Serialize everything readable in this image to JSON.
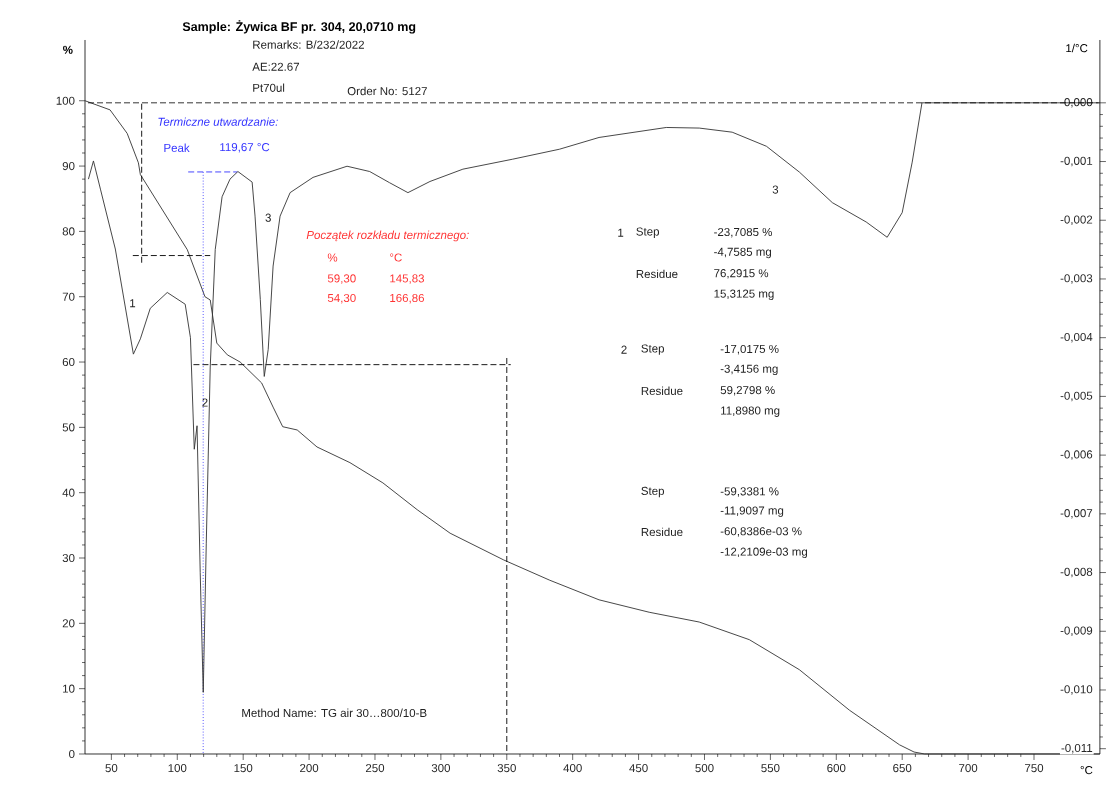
{
  "chart_data": {
    "type": "line",
    "title": "Sample: Żywica BF pr. 304, 20,0710 mg",
    "xlabel": "°C",
    "ylabel": "%",
    "y2label": "1/°C",
    "xlim": [
      30,
      800
    ],
    "xticks": [
      50,
      100,
      150,
      200,
      250,
      300,
      350,
      400,
      450,
      500,
      550,
      600,
      650,
      700,
      750
    ],
    "ylim": [
      0,
      109.3
    ],
    "yticks": [
      0,
      10,
      20,
      30,
      40,
      50,
      60,
      70,
      80,
      90,
      100
    ],
    "y2lim": [
      -0.01109,
      0.00107
    ],
    "y2ticks": [
      {
        "value": -0.011,
        "label": "-0,011"
      },
      {
        "value": -0.01,
        "label": "-0,010"
      },
      {
        "value": -0.009,
        "label": "-0,009"
      },
      {
        "value": -0.008,
        "label": "-0,008"
      },
      {
        "value": -0.007,
        "label": "-0,007"
      },
      {
        "value": -0.006,
        "label": "-0,006"
      },
      {
        "value": -0.005,
        "label": "-0,005"
      },
      {
        "value": -0.004,
        "label": "-0,004"
      },
      {
        "value": -0.003,
        "label": "-0,003"
      },
      {
        "value": -0.002,
        "label": "-0,002"
      },
      {
        "value": -0.001,
        "label": "-0,001"
      },
      {
        "value": 0.0,
        "label": "0,000"
      }
    ],
    "series": [
      {
        "type": "line",
        "color": "#333333",
        "axis": "y",
        "x": [
          30,
          49,
          62,
          70.5,
          72,
          107.6,
          121,
          125,
          130,
          138,
          147.7,
          164,
          172.7,
          180,
          191,
          206,
          231,
          256,
          282,
          307,
          347.7,
          382.6,
          420,
          458,
          496,
          534,
          572,
          610,
          648,
          659,
          667,
          800
        ],
        "values": [
          100,
          98.6,
          95,
          90.5,
          88.7,
          77.2,
          70,
          69.5,
          62.9,
          61.1,
          60.0,
          56.8,
          53.1,
          50.1,
          49.6,
          47,
          44.6,
          41.5,
          37.4,
          33.8,
          29.7,
          26.6,
          23.6,
          21.7,
          20.2,
          17.5,
          12.9,
          6.7,
          1.4,
          0.3,
          0,
          0
        ]
      },
      {
        "type": "line",
        "color": "#333333",
        "axis": "y2",
        "x": [
          32.6,
          36.4,
          41.7,
          53,
          66.7,
          72,
          79.5,
          92.4,
          106,
          110,
          112.9,
          115,
          117.4,
          119.7,
          122,
          125,
          128.8,
          134,
          140,
          146,
          156.8,
          159,
          163,
          166,
          169,
          172.7,
          178,
          185.6,
          203,
          228.8,
          246,
          261,
          275,
          291.7,
          316.7,
          354.5,
          390,
          420,
          471,
          496,
          521,
          547,
          572,
          597,
          622.7,
          638.6,
          650,
          657.6,
          665,
          799
        ],
        "values": [
          -0.0013,
          -0.00099,
          -0.00147,
          -0.00249,
          -0.00428,
          -0.00402,
          -0.0035,
          -0.00323,
          -0.00343,
          -0.004,
          -0.0059,
          -0.0055,
          -0.008,
          -0.01004,
          -0.0075,
          -0.0045,
          -0.0025,
          -0.0016,
          -0.0013,
          -0.00117,
          -0.00135,
          -0.00193,
          -0.00335,
          -0.00466,
          -0.0042,
          -0.00278,
          -0.00193,
          -0.00153,
          -0.00127,
          -0.00108,
          -0.00117,
          -0.00136,
          -0.00153,
          -0.00134,
          -0.00113,
          -0.00096,
          -0.00079,
          -0.00059,
          -0.00042,
          -0.00043,
          -0.0005,
          -0.00074,
          -0.00118,
          -0.0017,
          -0.00203,
          -0.00229,
          -0.00187,
          -0.00101,
          0,
          0
        ]
      },
      {
        "type": "line",
        "color": "#000000",
        "axis": "y",
        "line_style": "dashed",
        "x": [
          73,
          73
        ],
        "values": [
          100,
          75
        ]
      },
      {
        "type": "line",
        "color": "#000000",
        "axis": "y",
        "line_style": "dashed",
        "x": [
          64,
          125
        ],
        "values": [
          76.3,
          76.3
        ]
      },
      {
        "type": "line",
        "color": "#000000",
        "axis": "y",
        "line_style": "dashed",
        "x": [
          110,
          353
        ],
        "values": [
          59.6,
          59.6
        ]
      },
      {
        "type": "line",
        "color": "#000000",
        "axis": "y",
        "line_style": "dashed",
        "x": [
          350,
          350
        ],
        "values": [
          0,
          60.8
        ]
      },
      {
        "type": "line",
        "color": "#3333ff",
        "axis": "y",
        "line_style": "dotted",
        "x": [
          119.67,
          119.67
        ],
        "values": [
          89.1,
          0
        ]
      },
      {
        "type": "line",
        "color": "#3333ff",
        "axis": "y",
        "line_style": "dashed",
        "x": [
          106,
          145.5
        ],
        "values": [
          89.1,
          89.1
        ]
      }
    ],
    "ref_lines": [
      {
        "axis": "y2",
        "value": 0,
        "color": "#000000",
        "line_style": "dashed"
      }
    ],
    "annotations": [
      "Remarks: B/232/2022",
      "AE:22.67",
      "Pt70ul",
      "Order No: 5127",
      "Termiczne utwardzanie:",
      "Peak",
      "119,67 °C",
      "1",
      "2",
      "3",
      "3",
      "Początek rozkładu termicznego:",
      "%",
      "°C",
      "59,30",
      "145,83",
      "54,30",
      "166,86",
      "1",
      "Step",
      "-23,7085 %",
      "-4,7585 mg",
      "Residue",
      "76,2915 %",
      "15,3125 mg",
      "2",
      "Step",
      "-17,0175 %",
      "-3,4156 mg",
      "Residue",
      "59,2798 %",
      "11,8980 mg",
      "Step",
      "-59,3381 %",
      "-11,9097 mg",
      "Residue",
      "-60,8386e-03 %",
      "-12,2109e-03 mg",
      "Method Name: TG air 30…800/10-B"
    ]
  }
}
